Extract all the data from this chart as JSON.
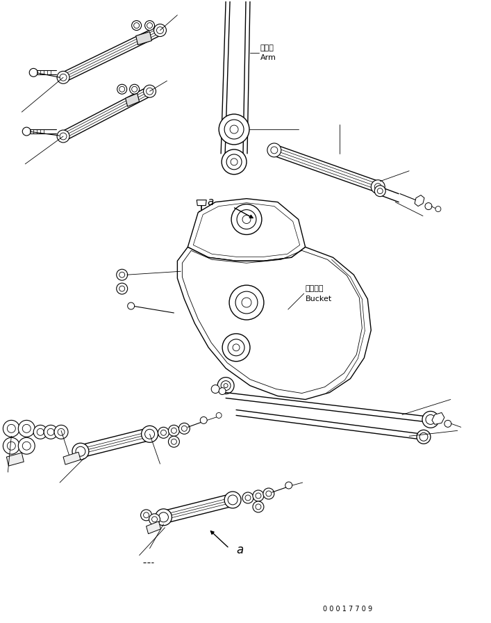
{
  "bg_color": "#ffffff",
  "line_color": "#000000",
  "fig_width": 7.07,
  "fig_height": 8.96,
  "dpi": 100,
  "label_arm_jp": "アーム",
  "label_arm_en": "Arm",
  "label_bucket_jp": "バケット",
  "label_bucket_en": "Bucket",
  "label_a_upper": "a",
  "label_a_lower": "a",
  "doc_number": "0 0 0 1 7 7 0 9"
}
